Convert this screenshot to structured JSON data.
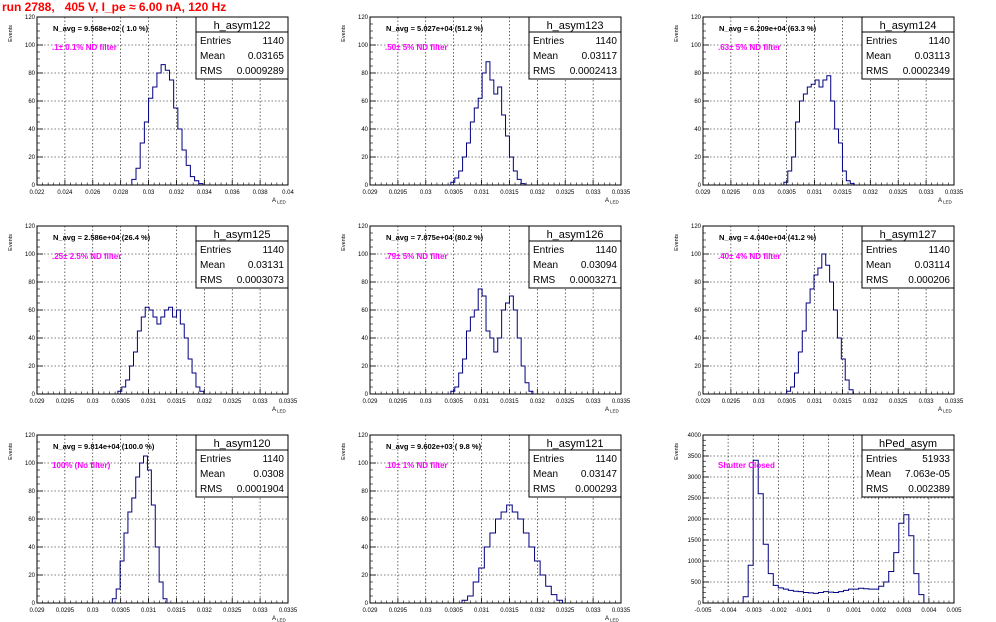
{
  "run_title": "run 2788,   405 V, I_pe ≈ 6.00 nA, 120 Hz",
  "colors": {
    "title": "#ff0000",
    "hist_line": "#000080",
    "annotation": "#ff00ff",
    "grid": "#000000"
  },
  "chart_data": [
    {
      "type": "histogram",
      "hist_name": "h_asym122",
      "navg_label": "N_avg = 9.568e+02 ( 1.0 %)",
      "filter_label": ".1± 0.1% ND filter",
      "stats": {
        "entries": "1140",
        "mean": "0.03165",
        "rms": "0.0009289"
      },
      "stats_labels": [
        "Entries",
        "Mean",
        "RMS"
      ],
      "xlabel": "A_LED",
      "ylabel": "Events",
      "xlim": [
        0.022,
        0.04
      ],
      "ylim": [
        0,
        120
      ],
      "xticks": [
        0.022,
        0.024,
        0.026,
        0.028,
        0.03,
        0.032,
        0.034,
        0.036,
        0.038,
        0.04
      ],
      "xtick_labels": [
        "0.022",
        "0.024",
        "0.026",
        "0.028",
        "0.03",
        "0.032",
        "0.034",
        "0.036",
        "0.038",
        "0.04"
      ],
      "yticks": [
        0,
        20,
        40,
        60,
        80,
        100,
        120
      ],
      "bin_edges": [
        0.0288,
        0.0291,
        0.0294,
        0.0297,
        0.03,
        0.0303,
        0.0306,
        0.0309,
        0.0312,
        0.0315,
        0.0318,
        0.0321,
        0.0324,
        0.0327,
        0.033,
        0.0333,
        0.0336,
        0.0339
      ],
      "counts": [
        4,
        12,
        30,
        45,
        62,
        70,
        80,
        86,
        82,
        75,
        55,
        40,
        25,
        14,
        6,
        3,
        1
      ]
    },
    {
      "type": "histogram",
      "hist_name": "h_asym123",
      "navg_label": "N_avg = 5.027e+04 (51.2 %)",
      "filter_label": ".50± 5% ND filter",
      "stats": {
        "entries": "1140",
        "mean": "0.03117",
        "rms": "0.0002413"
      },
      "stats_labels": [
        "Entries",
        "Mean",
        "RMS"
      ],
      "xlabel": "A_LED",
      "ylabel": "Events",
      "xlim": [
        0.029,
        0.0335
      ],
      "ylim": [
        0,
        120
      ],
      "xticks": [
        0.029,
        0.0295,
        0.03,
        0.0305,
        0.031,
        0.0315,
        0.032,
        0.0325,
        0.033,
        0.0335
      ],
      "xtick_labels": [
        "0.029",
        "0.0295",
        "0.03",
        "0.0305",
        "0.031",
        "0.0315",
        "0.032",
        "0.0325",
        "0.033",
        "0.0335"
      ],
      "yticks": [
        0,
        20,
        40,
        60,
        80,
        100,
        120
      ],
      "bin_edges": [
        0.03045,
        0.03052,
        0.03059,
        0.03066,
        0.03073,
        0.0308,
        0.03087,
        0.03094,
        0.03101,
        0.03108,
        0.03115,
        0.03122,
        0.03129,
        0.03136,
        0.03143,
        0.0315,
        0.03157,
        0.03164,
        0.03171,
        0.03178
      ],
      "counts": [
        2,
        5,
        10,
        20,
        30,
        45,
        55,
        62,
        80,
        88,
        75,
        65,
        70,
        50,
        35,
        20,
        10,
        4,
        1
      ]
    },
    {
      "type": "histogram",
      "hist_name": "h_asym124",
      "navg_label": "N_avg = 6.209e+04 (63.3 %)",
      "filter_label": ".63± 5% ND filter",
      "stats": {
        "entries": "1140",
        "mean": "0.03113",
        "rms": "0.0002349"
      },
      "stats_labels": [
        "Entries",
        "Mean",
        "RMS"
      ],
      "xlabel": "A_LED",
      "ylabel": "Events",
      "xlim": [
        0.029,
        0.0335
      ],
      "ylim": [
        0,
        120
      ],
      "xticks": [
        0.029,
        0.0295,
        0.03,
        0.0305,
        0.031,
        0.0315,
        0.032,
        0.0325,
        0.033,
        0.0335
      ],
      "xtick_labels": [
        "0.029",
        "0.0295",
        "0.03",
        "0.0305",
        "0.031",
        "0.0315",
        "0.032",
        "0.0325",
        "0.033",
        "0.0335"
      ],
      "yticks": [
        0,
        20,
        40,
        60,
        80,
        100,
        120
      ],
      "bin_edges": [
        0.03045,
        0.03052,
        0.03059,
        0.03066,
        0.03073,
        0.0308,
        0.03087,
        0.03094,
        0.03101,
        0.03108,
        0.03115,
        0.03122,
        0.03129,
        0.03136,
        0.03143,
        0.0315,
        0.03157,
        0.03164,
        0.03171
      ],
      "counts": [
        2,
        10,
        20,
        45,
        60,
        65,
        70,
        72,
        75,
        70,
        75,
        78,
        60,
        40,
        30,
        10,
        3,
        1
      ]
    },
    {
      "type": "histogram",
      "hist_name": "h_asym125",
      "navg_label": "N_avg = 2.586e+04 (26.4 %)",
      "filter_label": ".25± 2.5% ND filter",
      "stats": {
        "entries": "1140",
        "mean": "0.03131",
        "rms": "0.0003073"
      },
      "stats_labels": [
        "Entries",
        "Mean",
        "RMS"
      ],
      "xlabel": "A_LED",
      "ylabel": "Events",
      "xlim": [
        0.029,
        0.0335
      ],
      "ylim": [
        0,
        120
      ],
      "xticks": [
        0.029,
        0.0295,
        0.03,
        0.0305,
        0.031,
        0.0315,
        0.032,
        0.0325,
        0.033,
        0.0335
      ],
      "xtick_labels": [
        "0.029",
        "0.0295",
        "0.03",
        "0.0305",
        "0.031",
        "0.0315",
        "0.032",
        "0.0325",
        "0.033",
        "0.0335"
      ],
      "yticks": [
        0,
        20,
        40,
        60,
        80,
        100,
        120
      ],
      "bin_edges": [
        0.03045,
        0.03052,
        0.03059,
        0.03066,
        0.03073,
        0.0308,
        0.03087,
        0.03094,
        0.03101,
        0.03108,
        0.03115,
        0.03122,
        0.03129,
        0.03136,
        0.03143,
        0.0315,
        0.03157,
        0.03164,
        0.03171,
        0.03178,
        0.03185,
        0.03192,
        0.03199
      ],
      "counts": [
        2,
        5,
        10,
        20,
        30,
        45,
        55,
        62,
        60,
        55,
        50,
        55,
        60,
        62,
        55,
        60,
        50,
        40,
        25,
        15,
        5,
        2
      ]
    },
    {
      "type": "histogram",
      "hist_name": "h_asym126",
      "navg_label": "N_avg = 7.875e+04 (80.2 %)",
      "filter_label": ".79± 5% ND filter",
      "stats": {
        "entries": "1140",
        "mean": "0.03094",
        "rms": "0.0003271"
      },
      "stats_labels": [
        "Entries",
        "Mean",
        "RMS"
      ],
      "xlabel": "A_LED",
      "ylabel": "Events",
      "xlim": [
        0.029,
        0.0335
      ],
      "ylim": [
        0,
        120
      ],
      "xticks": [
        0.029,
        0.0295,
        0.03,
        0.0305,
        0.031,
        0.0315,
        0.032,
        0.0325,
        0.033,
        0.0335
      ],
      "xtick_labels": [
        "0.029",
        "0.0295",
        "0.03",
        "0.0305",
        "0.031",
        "0.0315",
        "0.032",
        "0.0325",
        "0.033",
        "0.0335"
      ],
      "yticks": [
        0,
        20,
        40,
        60,
        80,
        100,
        120
      ],
      "bin_edges": [
        0.03045,
        0.03052,
        0.03059,
        0.03066,
        0.03073,
        0.0308,
        0.03087,
        0.03094,
        0.03101,
        0.03108,
        0.03115,
        0.03122,
        0.03129,
        0.03136,
        0.03143,
        0.0315,
        0.03157,
        0.03164,
        0.03171,
        0.03178,
        0.03185,
        0.03192
      ],
      "counts": [
        2,
        5,
        15,
        25,
        45,
        55,
        60,
        75,
        70,
        45,
        40,
        30,
        40,
        60,
        65,
        70,
        60,
        40,
        20,
        8,
        2
      ]
    },
    {
      "type": "histogram",
      "hist_name": "h_asym127",
      "navg_label": "N_avg = 4.040e+04 (41.2 %)",
      "filter_label": ".40± 4% ND filter",
      "stats": {
        "entries": "1140",
        "mean": "0.03114",
        "rms": "0.000206"
      },
      "stats_labels": [
        "Entries",
        "Mean",
        "RMS"
      ],
      "xlabel": "A_LED",
      "ylabel": "Events",
      "xlim": [
        0.029,
        0.0335
      ],
      "ylim": [
        0,
        120
      ],
      "xticks": [
        0.029,
        0.0295,
        0.03,
        0.0305,
        0.031,
        0.0315,
        0.032,
        0.0325,
        0.033,
        0.0335
      ],
      "xtick_labels": [
        "0.029",
        "0.0295",
        "0.03",
        "0.0305",
        "0.031",
        "0.0315",
        "0.032",
        "0.0325",
        "0.033",
        "0.0335"
      ],
      "yticks": [
        0,
        20,
        40,
        60,
        80,
        100,
        120
      ],
      "bin_edges": [
        0.0305,
        0.03057,
        0.03064,
        0.03071,
        0.03078,
        0.03085,
        0.03092,
        0.03099,
        0.03106,
        0.03113,
        0.0312,
        0.03127,
        0.03134,
        0.03141,
        0.03148,
        0.03155,
        0.03162,
        0.03169
      ],
      "counts": [
        2,
        5,
        15,
        30,
        45,
        65,
        75,
        85,
        90,
        100,
        92,
        80,
        60,
        40,
        25,
        10,
        3
      ]
    },
    {
      "type": "histogram",
      "hist_name": "h_asym120",
      "navg_label": "N_avg = 9.814e+04 (100.0 %)",
      "filter_label": "100% (No filter)",
      "stats": {
        "entries": "1140",
        "mean": "0.0308",
        "rms": "0.0001904"
      },
      "stats_labels": [
        "Entries",
        "Mean",
        "RMS"
      ],
      "xlabel": "A_LED",
      "ylabel": "Events",
      "xlim": [
        0.029,
        0.0335
      ],
      "ylim": [
        0,
        120
      ],
      "xticks": [
        0.029,
        0.0295,
        0.03,
        0.0305,
        0.031,
        0.0315,
        0.032,
        0.0325,
        0.033,
        0.0335
      ],
      "xtick_labels": [
        "0.029",
        "0.0295",
        "0.03",
        "0.0305",
        "0.031",
        "0.0315",
        "0.032",
        "0.0325",
        "0.033",
        "0.0335"
      ],
      "yticks": [
        0,
        20,
        40,
        60,
        80,
        100,
        120
      ],
      "bin_edges": [
        0.03035,
        0.03042,
        0.03049,
        0.03056,
        0.03063,
        0.0307,
        0.03077,
        0.03084,
        0.03091,
        0.03098,
        0.03105,
        0.03112,
        0.03119,
        0.03126,
        0.03133
      ],
      "counts": [
        3,
        10,
        30,
        50,
        65,
        75,
        90,
        100,
        105,
        95,
        70,
        40,
        15,
        3
      ]
    },
    {
      "type": "histogram",
      "hist_name": "h_asym121",
      "navg_label": "N_avg = 9.602e+03 ( 9.8 %)",
      "filter_label": ".10± 1% ND filter",
      "stats": {
        "entries": "1140",
        "mean": "0.03147",
        "rms": "0.000293"
      },
      "stats_labels": [
        "Entries",
        "Mean",
        "RMS"
      ],
      "xlabel": "A_LED",
      "ylabel": "Events",
      "xlim": [
        0.029,
        0.0335
      ],
      "ylim": [
        0,
        120
      ],
      "xticks": [
        0.029,
        0.0295,
        0.03,
        0.0305,
        0.031,
        0.0315,
        0.032,
        0.0325,
        0.033,
        0.0335
      ],
      "xtick_labels": [
        "0.029",
        "0.0295",
        "0.03",
        "0.0305",
        "0.031",
        "0.0315",
        "0.032",
        "0.0325",
        "0.033",
        "0.0335"
      ],
      "yticks": [
        0,
        20,
        40,
        60,
        80,
        100,
        120
      ],
      "bin_edges": [
        0.03065,
        0.03075,
        0.03085,
        0.03095,
        0.03105,
        0.03115,
        0.03125,
        0.03135,
        0.03145,
        0.03155,
        0.03165,
        0.03175,
        0.03185,
        0.03195,
        0.03205,
        0.03215,
        0.03225,
        0.03235,
        0.03245
      ],
      "counts": [
        2,
        5,
        15,
        25,
        40,
        50,
        60,
        65,
        70,
        65,
        60,
        50,
        40,
        30,
        20,
        12,
        6,
        2
      ]
    },
    {
      "type": "histogram",
      "hist_name": "hPed_asym",
      "navg_label": "",
      "filter_label": "Shutter Closed",
      "stats": {
        "entries": "51933",
        "mean": "7.063e-05",
        "rms": "0.002389"
      },
      "stats_labels": [
        "Entries",
        "Mean",
        "RMS"
      ],
      "xlabel": "",
      "ylabel": "Events",
      "xlim": [
        -0.005,
        0.005
      ],
      "ylim": [
        0,
        4000
      ],
      "xticks": [
        -0.005,
        -0.004,
        -0.003,
        -0.002,
        -0.001,
        0,
        0.001,
        0.002,
        0.003,
        0.004,
        0.005
      ],
      "xtick_labels": [
        "-0.005",
        "-0.004",
        "-0.003",
        "-0.002",
        "-0.001",
        "0",
        "0.001",
        "0.002",
        "0.003",
        "0.004",
        "0.005"
      ],
      "yticks": [
        0,
        500,
        1000,
        1500,
        2000,
        2500,
        3000,
        3500,
        4000
      ],
      "bin_edges": [
        -0.0034,
        -0.0032,
        -0.003,
        -0.0028,
        -0.0026,
        -0.0024,
        -0.0022,
        -0.002,
        -0.0018,
        -0.0016,
        -0.0014,
        -0.0012,
        -0.001,
        -0.0008,
        -0.0006,
        -0.0004,
        -0.0002,
        0,
        0.0002,
        0.0004,
        0.0006,
        0.0008,
        0.001,
        0.0012,
        0.0014,
        0.0016,
        0.0018,
        0.002,
        0.0022,
        0.0024,
        0.0026,
        0.0028,
        0.003,
        0.0032,
        0.0034,
        0.0036,
        0.0038
      ],
      "counts": [
        150,
        900,
        3400,
        2600,
        1400,
        700,
        420,
        360,
        330,
        300,
        280,
        270,
        250,
        240,
        230,
        250,
        270,
        260,
        250,
        270,
        300,
        330,
        330,
        350,
        340,
        330,
        330,
        400,
        500,
        750,
        1200,
        1900,
        2100,
        1600,
        700,
        200
      ]
    }
  ]
}
